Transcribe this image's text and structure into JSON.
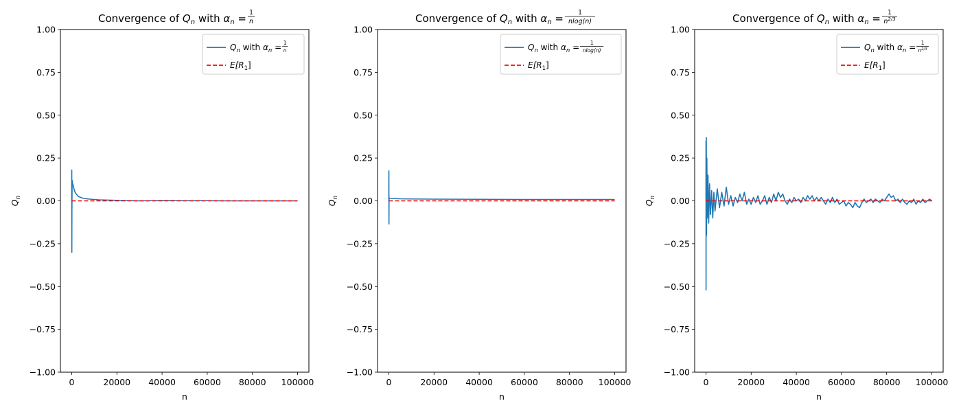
{
  "chart_data": [
    {
      "type": "line",
      "title_prefix": "Convergence of ",
      "title_q": "Q",
      "title_q_sub": "n",
      "title_with": " with ",
      "title_alpha_sub": "n",
      "alpha_num": "1",
      "alpha_den": "n",
      "alpha_den_kind": "plain",
      "xlabel": "n",
      "ylabel_main": "Q",
      "ylabel_sub": "n",
      "xlim": [
        -5000,
        105000
      ],
      "ylim": [
        -1.0,
        1.0
      ],
      "xticks": [
        0,
        20000,
        40000,
        60000,
        80000,
        100000
      ],
      "yticks": [
        -1.0,
        -0.75,
        -0.5,
        -0.25,
        0.0,
        0.25,
        0.5,
        0.75,
        1.0
      ],
      "ytick_labels": [
        "−1.00",
        "−0.75",
        "−0.50",
        "−0.25",
        "0.00",
        "0.25",
        "0.50",
        "0.75",
        "1.00"
      ],
      "legend_position": "top-right",
      "series": [
        {
          "name": "Q_n with α_n = 1/n",
          "color": "#1f77b4",
          "style": "solid",
          "points": [
            [
              0,
              0.0
            ],
            [
              30,
              0.18
            ],
            [
              60,
              -0.3
            ],
            [
              100,
              -0.06
            ],
            [
              200,
              0.12
            ],
            [
              400,
              0.1
            ],
            [
              700,
              0.09
            ],
            [
              1000,
              0.07
            ],
            [
              1500,
              0.05
            ],
            [
              2000,
              0.04
            ],
            [
              3000,
              0.025
            ],
            [
              5000,
              0.015
            ],
            [
              8000,
              0.01
            ],
            [
              12000,
              0.006
            ],
            [
              20000,
              0.003
            ],
            [
              30000,
              0.0
            ],
            [
              40000,
              0.002
            ],
            [
              50000,
              0.001
            ],
            [
              60000,
              0.001
            ],
            [
              70000,
              0.0
            ],
            [
              80000,
              0.0
            ],
            [
              90000,
              0.0
            ],
            [
              100000,
              0.0
            ]
          ]
        },
        {
          "name": "E[R_1]",
          "color": "#ff0000",
          "style": "dashed",
          "points": [
            [
              0,
              0.0
            ],
            [
              100000,
              0.0
            ]
          ]
        }
      ],
      "legend": {
        "line1_q": "Q",
        "line1_q_sub": "n",
        "line1_with": " with ",
        "line1_alpha_sub": "n",
        "line2_e": "E",
        "line2_r": "[R",
        "line2_r_sub": "1",
        "line2_close": "]"
      }
    },
    {
      "type": "line",
      "title_prefix": "Convergence of ",
      "title_q": "Q",
      "title_q_sub": "n",
      "title_with": " with ",
      "title_alpha_sub": "n",
      "alpha_num": "1",
      "alpha_den": "nlog(n)",
      "alpha_den_kind": "plain",
      "xlabel": "n",
      "ylabel_main": "Q",
      "ylabel_sub": "n",
      "xlim": [
        -5000,
        105000
      ],
      "ylim": [
        -1.0,
        1.0
      ],
      "xticks": [
        0,
        20000,
        40000,
        60000,
        80000,
        100000
      ],
      "yticks": [
        -1.0,
        -0.75,
        -0.5,
        -0.25,
        0.0,
        0.25,
        0.5,
        0.75,
        1.0
      ],
      "ytick_labels": [
        "−1.00",
        "−0.75",
        "−0.50",
        "−0.25",
        "0.00",
        "0.25",
        "0.50",
        "0.75",
        "1.00"
      ],
      "legend_position": "top-right",
      "series": [
        {
          "name": "Q_n with α_n = 1/(n log(n))",
          "color": "#1f77b4",
          "style": "solid",
          "points": [
            [
              0,
              0.0
            ],
            [
              30,
              0.175
            ],
            [
              60,
              -0.135
            ],
            [
              100,
              0.02
            ],
            [
              300,
              0.015
            ],
            [
              1000,
              0.014
            ],
            [
              5000,
              0.012
            ],
            [
              10000,
              0.011
            ],
            [
              20000,
              0.01
            ],
            [
              40000,
              0.009
            ],
            [
              60000,
              0.008
            ],
            [
              80000,
              0.008
            ],
            [
              100000,
              0.008
            ]
          ]
        },
        {
          "name": "E[R_1]",
          "color": "#ff0000",
          "style": "dashed",
          "points": [
            [
              0,
              0.0
            ],
            [
              100000,
              0.0
            ]
          ]
        }
      ],
      "legend": {
        "line1_q": "Q",
        "line1_q_sub": "n",
        "line1_with": " with ",
        "line1_alpha_sub": "n",
        "line2_e": "E",
        "line2_r": "[R",
        "line2_r_sub": "1",
        "line2_close": "]"
      }
    },
    {
      "type": "line",
      "title_prefix": "Convergence of ",
      "title_q": "Q",
      "title_q_sub": "n",
      "title_with": " with ",
      "title_alpha_sub": "n",
      "alpha_num": "1",
      "alpha_den": "n",
      "alpha_den_sup": "2/3",
      "alpha_den_kind": "power",
      "xlabel": "n",
      "ylabel_main": "Q",
      "ylabel_sub": "n",
      "xlim": [
        -5000,
        105000
      ],
      "ylim": [
        -1.0,
        1.0
      ],
      "xticks": [
        0,
        20000,
        40000,
        60000,
        80000,
        100000
      ],
      "yticks": [
        -1.0,
        -0.75,
        -0.5,
        -0.25,
        0.0,
        0.25,
        0.5,
        0.75,
        1.0
      ],
      "ytick_labels": [
        "−1.00",
        "−0.75",
        "−0.50",
        "−0.25",
        "0.00",
        "0.25",
        "0.50",
        "0.75",
        "1.00"
      ],
      "legend_position": "top-right",
      "series": [
        {
          "name": "Q_n with α_n = 1/n^(2/3)",
          "color": "#1f77b4",
          "style": "solid",
          "points": [
            [
              0,
              0.0
            ],
            [
              20,
              0.35
            ],
            [
              40,
              -0.52
            ],
            [
              80,
              0.2
            ],
            [
              150,
              0.37
            ],
            [
              250,
              -0.2
            ],
            [
              400,
              0.25
            ],
            [
              600,
              -0.1
            ],
            [
              900,
              0.15
            ],
            [
              1200,
              -0.13
            ],
            [
              1600,
              0.1
            ],
            [
              2000,
              -0.08
            ],
            [
              2500,
              0.06
            ],
            [
              3000,
              -0.1
            ],
            [
              3500,
              0.05
            ],
            [
              4000,
              -0.06
            ],
            [
              5000,
              0.07
            ],
            [
              6000,
              -0.04
            ],
            [
              7000,
              0.05
            ],
            [
              8000,
              -0.03
            ],
            [
              9000,
              0.08
            ],
            [
              10000,
              -0.02
            ],
            [
              11000,
              0.03
            ],
            [
              12000,
              -0.03
            ],
            [
              13000,
              0.02
            ],
            [
              14000,
              -0.01
            ],
            [
              15000,
              0.04
            ],
            [
              16000,
              0.0
            ],
            [
              17000,
              0.05
            ],
            [
              18000,
              -0.02
            ],
            [
              19000,
              0.01
            ],
            [
              20000,
              -0.02
            ],
            [
              21000,
              0.02
            ],
            [
              22000,
              -0.01
            ],
            [
              23000,
              0.03
            ],
            [
              24000,
              -0.02
            ],
            [
              25000,
              0.0
            ],
            [
              26000,
              0.03
            ],
            [
              27000,
              -0.02
            ],
            [
              28000,
              0.02
            ],
            [
              29000,
              -0.01
            ],
            [
              30000,
              0.04
            ],
            [
              31000,
              0.0
            ],
            [
              32000,
              0.05
            ],
            [
              33000,
              0.02
            ],
            [
              34000,
              0.04
            ],
            [
              35000,
              0.0
            ],
            [
              36000,
              -0.02
            ],
            [
              37000,
              0.01
            ],
            [
              38000,
              -0.01
            ],
            [
              39000,
              0.02
            ],
            [
              40000,
              0.0
            ],
            [
              41000,
              0.01
            ],
            [
              42000,
              -0.01
            ],
            [
              43000,
              0.02
            ],
            [
              44000,
              0.0
            ],
            [
              45000,
              0.03
            ],
            [
              46000,
              0.01
            ],
            [
              47000,
              0.03
            ],
            [
              48000,
              0.0
            ],
            [
              49000,
              0.02
            ],
            [
              50000,
              0.0
            ],
            [
              51000,
              0.02
            ],
            [
              52000,
              0.0
            ],
            [
              53000,
              -0.02
            ],
            [
              54000,
              0.01
            ],
            [
              55000,
              -0.01
            ],
            [
              56000,
              0.02
            ],
            [
              57000,
              -0.01
            ],
            [
              58000,
              0.01
            ],
            [
              59000,
              -0.02
            ],
            [
              60000,
              -0.01
            ],
            [
              61000,
              0.0
            ],
            [
              62000,
              -0.03
            ],
            [
              63000,
              -0.01
            ],
            [
              64000,
              -0.02
            ],
            [
              65000,
              -0.04
            ],
            [
              66000,
              -0.01
            ],
            [
              67000,
              -0.03
            ],
            [
              68000,
              -0.04
            ],
            [
              69000,
              -0.01
            ],
            [
              70000,
              0.01
            ],
            [
              71000,
              -0.01
            ],
            [
              72000,
              0.0
            ],
            [
              73000,
              0.01
            ],
            [
              74000,
              -0.01
            ],
            [
              75000,
              0.01
            ],
            [
              76000,
              0.0
            ],
            [
              77000,
              -0.01
            ],
            [
              78000,
              0.01
            ],
            [
              79000,
              0.0
            ],
            [
              80000,
              0.02
            ],
            [
              81000,
              0.04
            ],
            [
              82000,
              0.02
            ],
            [
              83000,
              0.03
            ],
            [
              84000,
              0.0
            ],
            [
              85000,
              0.01
            ],
            [
              86000,
              -0.01
            ],
            [
              87000,
              0.01
            ],
            [
              88000,
              -0.01
            ],
            [
              89000,
              -0.02
            ],
            [
              90000,
              0.0
            ],
            [
              91000,
              -0.01
            ],
            [
              92000,
              0.01
            ],
            [
              93000,
              -0.02
            ],
            [
              94000,
              0.0
            ],
            [
              95000,
              -0.01
            ],
            [
              96000,
              0.01
            ],
            [
              97000,
              -0.01
            ],
            [
              98000,
              0.0
            ],
            [
              99000,
              0.01
            ],
            [
              100000,
              0.0
            ]
          ]
        },
        {
          "name": "E[R_1]",
          "color": "#ff0000",
          "style": "dashed",
          "points": [
            [
              0,
              0.0
            ],
            [
              100000,
              0.0
            ]
          ]
        }
      ],
      "legend": {
        "line1_q": "Q",
        "line1_q_sub": "n",
        "line1_with": " with ",
        "line1_alpha_sub": "n",
        "line2_e": "E",
        "line2_r": "[R",
        "line2_r_sub": "1",
        "line2_close": "]"
      }
    }
  ]
}
